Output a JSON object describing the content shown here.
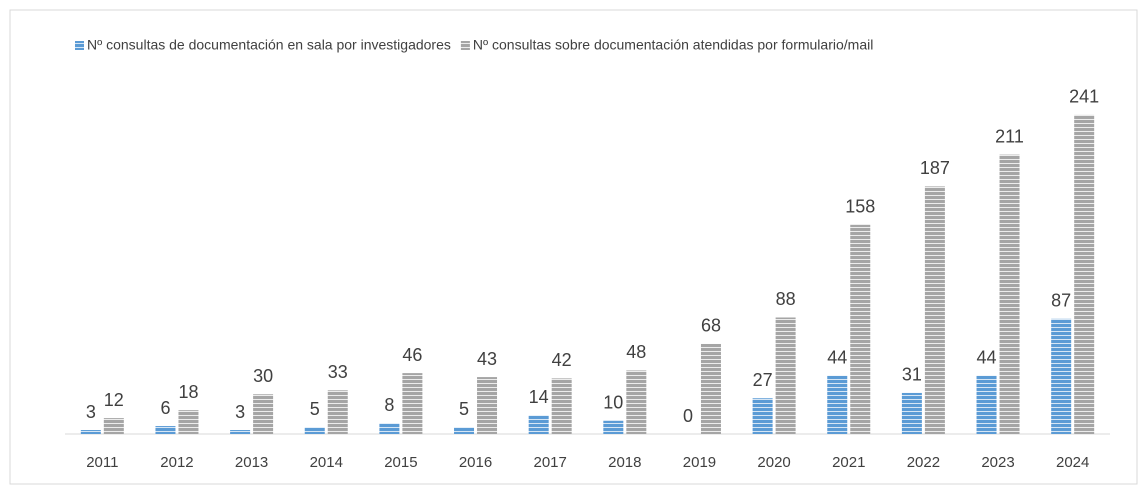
{
  "chart_data": {
    "type": "bar",
    "categories": [
      "2011",
      "2012",
      "2013",
      "2014",
      "2015",
      "2016",
      "2017",
      "2018",
      "2019",
      "2020",
      "2021",
      "2022",
      "2023",
      "2024"
    ],
    "series": [
      {
        "name": "Nº consultas de documentación en sala por investigadores",
        "color": "#5b9bd5",
        "values": [
          3,
          6,
          3,
          5,
          8,
          5,
          14,
          10,
          0,
          27,
          44,
          31,
          44,
          87
        ]
      },
      {
        "name": "Nº consultas sobre documentación atendidas por formulario/mail",
        "color": "#a5a5a5",
        "values": [
          12,
          18,
          30,
          33,
          46,
          43,
          42,
          48,
          68,
          88,
          158,
          187,
          211,
          241
        ]
      }
    ],
    "legend": "top"
  }
}
